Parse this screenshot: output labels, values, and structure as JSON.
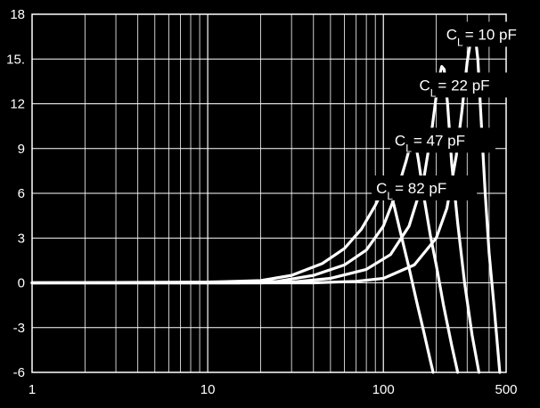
{
  "chart_data": {
    "type": "line",
    "xscale": "log",
    "xlim": [
      1,
      500
    ],
    "ylim": [
      -6,
      18
    ],
    "grid": true,
    "colors": {
      "background": "#000000",
      "line": "#ffffff",
      "grid": "#ffffff"
    },
    "x_ticks": [
      {
        "value": 1,
        "label": "1"
      },
      {
        "value": 10,
        "label": "10"
      },
      {
        "value": 100,
        "label": "100"
      },
      {
        "value": 500,
        "label": "500"
      }
    ],
    "y_ticks": [
      {
        "value": 18,
        "label": "18"
      },
      {
        "value": 15,
        "label": "15."
      },
      {
        "value": 12,
        "label": "12"
      },
      {
        "value": 9,
        "label": "9"
      },
      {
        "value": 6,
        "label": "6"
      },
      {
        "value": 3,
        "label": "3"
      },
      {
        "value": 0,
        "label": "0"
      },
      {
        "value": -3,
        "label": "-3"
      },
      {
        "value": -6,
        "label": "-6"
      }
    ],
    "series": [
      {
        "name_main": "C",
        "name_sub": "L",
        "name_rest": "= 10 pF",
        "label_at": {
          "x": 228,
          "y": 16.3
        },
        "points": [
          [
            1,
            0
          ],
          [
            20,
            0
          ],
          [
            40,
            0
          ],
          [
            70,
            0.1
          ],
          [
            100,
            0.3
          ],
          [
            150,
            1.2
          ],
          [
            200,
            3.0
          ],
          [
            230,
            5.0
          ],
          [
            260,
            8.5
          ],
          [
            280,
            11.5
          ],
          [
            300,
            14.8
          ],
          [
            320,
            16.8
          ],
          [
            330,
            17.0
          ],
          [
            345,
            15.0
          ],
          [
            360,
            11.0
          ],
          [
            380,
            6.0
          ],
          [
            400,
            2.0
          ],
          [
            430,
            -2.0
          ],
          [
            460,
            -6.0
          ]
        ]
      },
      {
        "name_main": "C",
        "name_sub": "L",
        "name_rest": "= 22 pF",
        "label_at": {
          "x": 160,
          "y": 12.9
        },
        "points": [
          [
            1,
            0
          ],
          [
            20,
            0
          ],
          [
            30,
            0.05
          ],
          [
            50,
            0.3
          ],
          [
            80,
            0.9
          ],
          [
            110,
            1.9
          ],
          [
            140,
            3.8
          ],
          [
            170,
            7.0
          ],
          [
            190,
            10.5
          ],
          [
            205,
            13.5
          ],
          [
            215,
            14.5
          ],
          [
            222,
            14.3
          ],
          [
            232,
            12.0
          ],
          [
            245,
            8.0
          ],
          [
            265,
            4.0
          ],
          [
            290,
            0
          ],
          [
            320,
            -3.5
          ],
          [
            350,
            -6.0
          ]
        ]
      },
      {
        "name_main": "C",
        "name_sub": "L",
        "name_rest": "= 47 pF",
        "label_at": {
          "x": 116,
          "y": 9.2
        },
        "points": [
          [
            1,
            0
          ],
          [
            15,
            0
          ],
          [
            25,
            0.1
          ],
          [
            40,
            0.5
          ],
          [
            60,
            1.2
          ],
          [
            80,
            2.2
          ],
          [
            100,
            3.8
          ],
          [
            120,
            6.2
          ],
          [
            135,
            8.2
          ],
          [
            145,
            9.6
          ],
          [
            152,
            9.4
          ],
          [
            158,
            8.3
          ],
          [
            170,
            5.8
          ],
          [
            185,
            3.2
          ],
          [
            200,
            1.2
          ],
          [
            220,
            -1.5
          ],
          [
            245,
            -4.2
          ],
          [
            265,
            -6.0
          ]
        ]
      },
      {
        "name_main": "C",
        "name_sub": "L",
        "name_rest": "= 82 pF",
        "label_at": {
          "x": 91,
          "y": 6.0
        },
        "points": [
          [
            1,
            0
          ],
          [
            10,
            0.05
          ],
          [
            20,
            0.15
          ],
          [
            30,
            0.5
          ],
          [
            45,
            1.3
          ],
          [
            60,
            2.3
          ],
          [
            75,
            3.6
          ],
          [
            90,
            5.2
          ],
          [
            100,
            6.3
          ],
          [
            104,
            6.5
          ],
          [
            108,
            6.3
          ],
          [
            115,
            5.2
          ],
          [
            125,
            3.4
          ],
          [
            140,
            1.0
          ],
          [
            155,
            -1.3
          ],
          [
            170,
            -3.3
          ],
          [
            185,
            -5.2
          ],
          [
            192,
            -6.0
          ]
        ]
      }
    ]
  }
}
